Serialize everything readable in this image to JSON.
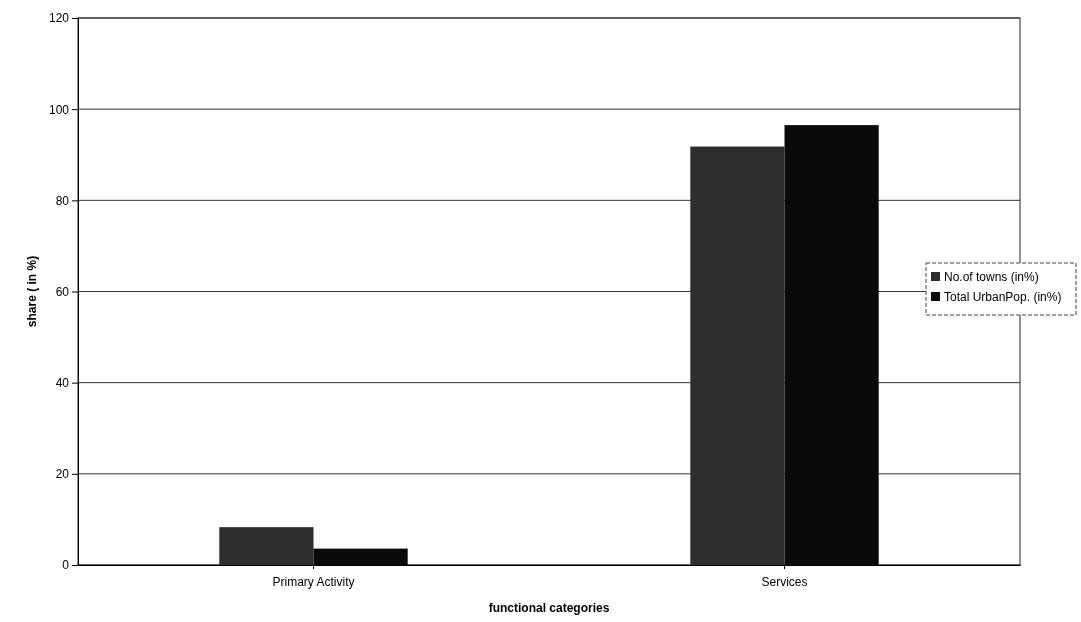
{
  "chart_data": {
    "type": "bar",
    "xlabel": "functional categories",
    "ylabel": "share ( in %)",
    "categories": [
      "Primary Activity",
      "Services"
    ],
    "series": [
      {
        "name": "No.of towns (in%)",
        "color": "#2e2e2e",
        "values": [
          8.3,
          91.8
        ]
      },
      {
        "name": "Total UrbanPop. (in%)",
        "color": "#0a0a0a",
        "values": [
          3.6,
          96.5
        ]
      }
    ],
    "ylim": [
      0,
      120
    ],
    "yticks": [
      0,
      20,
      40,
      60,
      80,
      100,
      120
    ],
    "grid": "y",
    "legend": "right"
  }
}
